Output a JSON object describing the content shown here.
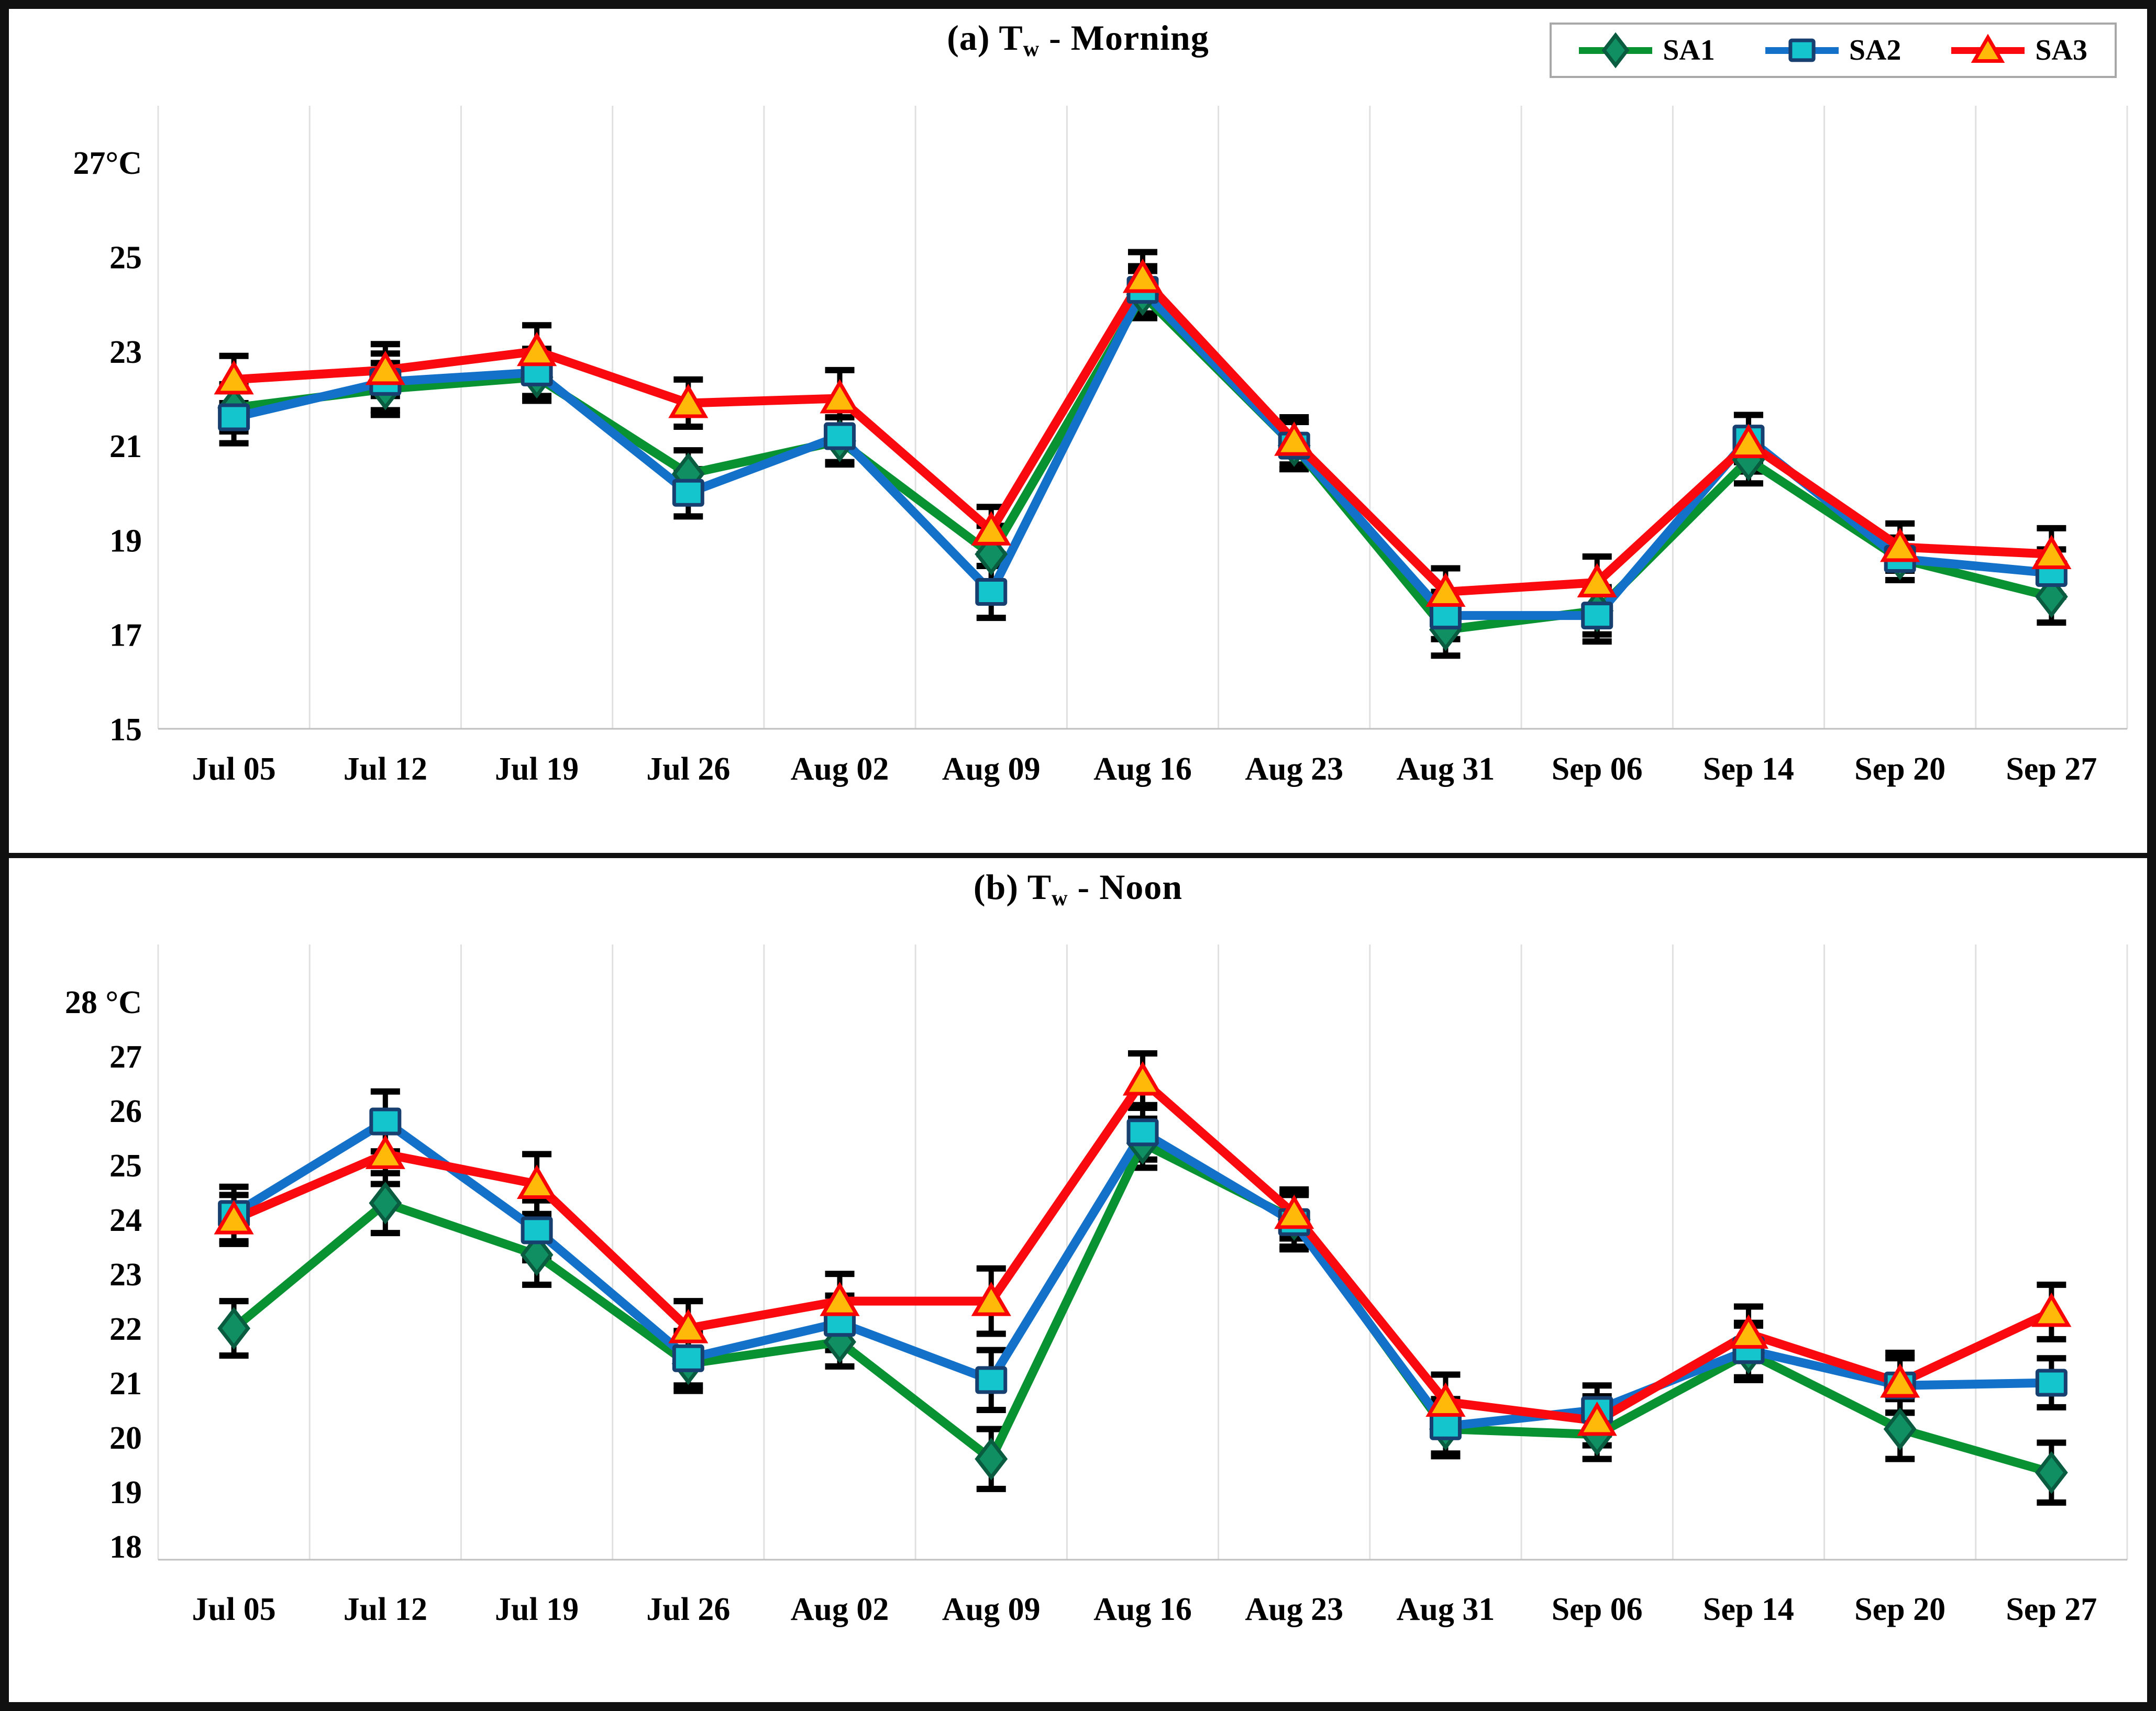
{
  "figure": {
    "kind": "two-panel weekly water-temperature line chart",
    "grid_color": "#e0e0e0",
    "axis_line_color": "#bfbfbf",
    "error_bar_color": "#000000",
    "border_color": "#101010",
    "legend_border_color": "#a8a8a8"
  },
  "chart_data": [
    {
      "id": "morning",
      "type": "line",
      "title": "(a) Tw - Morning",
      "title_parts": {
        "prefix": "(a) T",
        "sub": "w",
        "suffix": " - Morning"
      },
      "unit": "°C",
      "categories": [
        "Jul 05",
        "Jul 12",
        "Jul 19",
        "Jul 26",
        "Aug 02",
        "Aug 09",
        "Aug 16",
        "Aug 23",
        "Aug 31",
        "Sep 06",
        "Sep 14",
        "Sep 20",
        "Sep 27"
      ],
      "ylim": [
        15,
        28.2
      ],
      "yticks": [
        {
          "v": 27,
          "label": "27°C"
        },
        {
          "v": 25,
          "label": "25"
        },
        {
          "v": 23,
          "label": "23"
        },
        {
          "v": 21,
          "label": "21"
        },
        {
          "v": 19,
          "label": "19"
        },
        {
          "v": 17,
          "label": "17"
        },
        {
          "v": 15,
          "label": "15"
        }
      ],
      "grid": "vertical-only",
      "legend_position": "top-right",
      "series": [
        {
          "name": "SA1",
          "marker": "diamond",
          "line_color": "#089231",
          "marker_fill": "#0f8f62",
          "marker_stroke": "#0a5c40",
          "values": [
            21.8,
            22.2,
            22.45,
            20.4,
            21.1,
            18.7,
            24.2,
            21.0,
            17.1,
            17.5,
            20.7,
            18.6,
            17.8
          ],
          "errors": [
            0.5,
            0.55,
            0.5,
            0.5,
            0.5,
            0.6,
            0.5,
            0.5,
            0.55,
            0.5,
            0.5,
            0.45,
            0.55
          ]
        },
        {
          "name": "SA2",
          "marker": "square",
          "line_color": "#1471c9",
          "marker_fill": "#14c5ce",
          "marker_stroke": "#173f6f",
          "values": [
            21.6,
            22.35,
            22.55,
            20.0,
            21.2,
            17.9,
            24.3,
            21.0,
            17.4,
            17.4,
            21.15,
            18.6,
            18.3
          ],
          "errors": [
            0.55,
            0.6,
            0.5,
            0.5,
            0.55,
            0.55,
            0.5,
            0.5,
            0.5,
            0.55,
            0.5,
            0.45,
            0.5
          ]
        },
        {
          "name": "SA3",
          "marker": "triangle",
          "line_color": "#fa0a0e",
          "marker_fill": "#ffba09",
          "marker_stroke": "#f90505",
          "values": [
            22.4,
            22.6,
            23.0,
            21.9,
            22.0,
            19.2,
            24.55,
            21.1,
            17.9,
            18.1,
            21.05,
            18.85,
            18.7
          ],
          "errors": [
            0.5,
            0.55,
            0.55,
            0.5,
            0.6,
            0.5,
            0.55,
            0.5,
            0.5,
            0.55,
            0.6,
            0.5,
            0.55
          ]
        }
      ]
    },
    {
      "id": "noon",
      "type": "line",
      "title": "(b) Tw - Noon",
      "title_parts": {
        "prefix": "(b) T",
        "sub": "w",
        "suffix": " - Noon"
      },
      "unit": "°C",
      "categories": [
        "Jul 05",
        "Jul 12",
        "Jul 19",
        "Jul 26",
        "Aug 02",
        "Aug 09",
        "Aug 16",
        "Aug 23",
        "Aug 31",
        "Sep 06",
        "Sep 14",
        "Sep 20",
        "Sep 27"
      ],
      "ylim": [
        17.75,
        29.05
      ],
      "yticks": [
        {
          "v": 28,
          "label": "28 °C"
        },
        {
          "v": 27,
          "label": "27"
        },
        {
          "v": 26,
          "label": "26"
        },
        {
          "v": 25,
          "label": "25"
        },
        {
          "v": 24,
          "label": "24"
        },
        {
          "v": 23,
          "label": "23"
        },
        {
          "v": 22,
          "label": "22"
        },
        {
          "v": 21,
          "label": "21"
        },
        {
          "v": 20,
          "label": "20"
        },
        {
          "v": 19,
          "label": "19"
        },
        {
          "v": 18,
          "label": "18"
        }
      ],
      "grid": "vertical-only",
      "legend_position": "none",
      "series": [
        {
          "name": "SA1",
          "marker": "diamond",
          "line_color": "#089231",
          "marker_fill": "#0f8f62",
          "marker_stroke": "#0a5c40",
          "values": [
            22.0,
            24.3,
            23.35,
            21.35,
            21.75,
            19.6,
            25.4,
            24.0,
            20.15,
            20.05,
            21.55,
            20.15,
            19.35
          ],
          "errors": [
            0.5,
            0.55,
            0.55,
            0.5,
            0.45,
            0.55,
            0.45,
            0.5,
            0.5,
            0.45,
            0.5,
            0.55,
            0.55
          ]
        },
        {
          "name": "SA2",
          "marker": "square",
          "line_color": "#1471c9",
          "marker_fill": "#14c5ce",
          "marker_stroke": "#173f6f",
          "values": [
            24.1,
            25.8,
            23.8,
            21.45,
            22.1,
            21.05,
            25.6,
            23.95,
            20.2,
            20.5,
            21.6,
            20.95,
            21.0
          ],
          "errors": [
            0.5,
            0.55,
            0.55,
            0.5,
            0.5,
            0.55,
            0.5,
            0.5,
            0.5,
            0.45,
            0.5,
            0.5,
            0.45
          ]
        },
        {
          "name": "SA3",
          "marker": "triangle",
          "line_color": "#fa0a0e",
          "marker_fill": "#ffba09",
          "marker_stroke": "#f90505",
          "values": [
            24.0,
            25.2,
            24.65,
            22.0,
            22.5,
            22.5,
            26.55,
            24.1,
            20.65,
            20.3,
            21.9,
            21.0,
            22.3
          ],
          "errors": [
            0.45,
            0.55,
            0.55,
            0.5,
            0.5,
            0.6,
            0.5,
            0.45,
            0.5,
            0.45,
            0.5,
            0.55,
            0.5
          ]
        }
      ]
    }
  ]
}
